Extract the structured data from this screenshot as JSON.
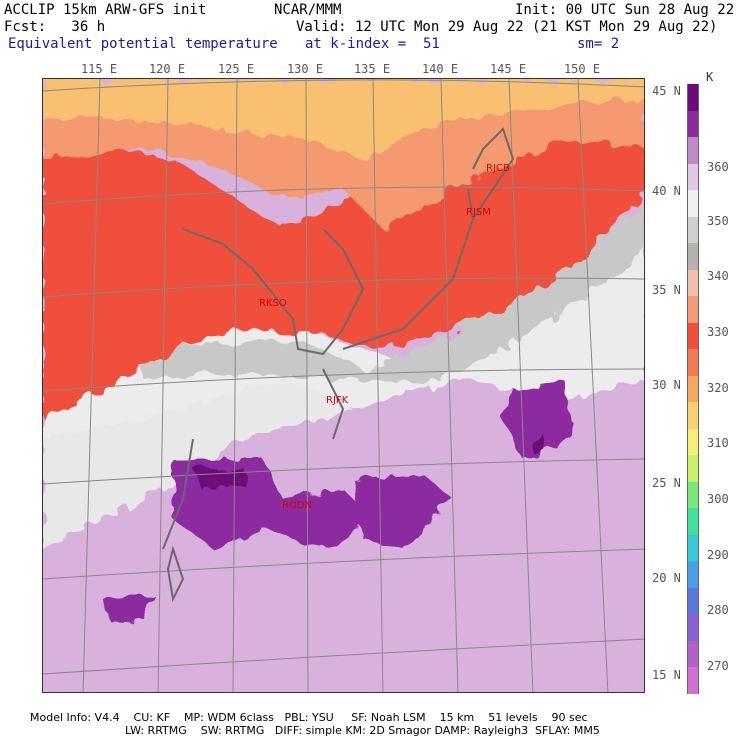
{
  "header": {
    "model": "ACCLIP 15km ARW-GFS init",
    "org": "NCAR/MMM",
    "init": "Init: 00 UTC Sun 28 Aug 22",
    "fcst": "Fcst:   36 h",
    "valid": "Valid: 12 UTC Mon 29 Aug 22 (21 KST Mon 29 Aug 22)",
    "field": "Equivalent potential temperature",
    "level": "at k-index =  51",
    "smooth": "sm= 2"
  },
  "axes": {
    "lon_labels": [
      "115 E",
      "120 E",
      "125 E",
      "130 E",
      "135 E",
      "140 E",
      "145 E",
      "150 E"
    ],
    "lat_labels": [
      "45 N",
      "40 N",
      "35 N",
      "30 N",
      "25 N",
      "20 N",
      "15 N"
    ]
  },
  "stations": [
    "RJCB",
    "RJSM",
    "RKSO",
    "RJFK",
    "RODN"
  ],
  "colorbar": {
    "unit": "K",
    "labels": [
      "360",
      "350",
      "340",
      "330",
      "320",
      "310",
      "300",
      "290",
      "280",
      "270"
    ],
    "colors": [
      "#6e0a7a",
      "#8e2aa0",
      "#c08ac8",
      "#e2c6e6",
      "#f0f0f0",
      "#cfcfcf",
      "#b8b0ae",
      "#f2c0a8",
      "#f59a78",
      "#f0503a",
      "#f27a50",
      "#f7a860",
      "#fad070",
      "#f5ee7a",
      "#c8f06a",
      "#78e878",
      "#40e0a0",
      "#38c8d8",
      "#4aa0e8",
      "#5a78e0",
      "#8a62d8",
      "#b060c8",
      "#d070d0"
    ]
  },
  "footer": {
    "line1": "Model Info: V4.4    CU: KF    MP: WDM 6class   PBL: YSU     SF: Noah LSM    15 km    51 levels    90 sec",
    "line2": "LW: RRTMG    SW: RRTMG   DIFF: simple KM: 2D Smagor DAMP: Rayleigh3  SFLAY: MM5"
  }
}
